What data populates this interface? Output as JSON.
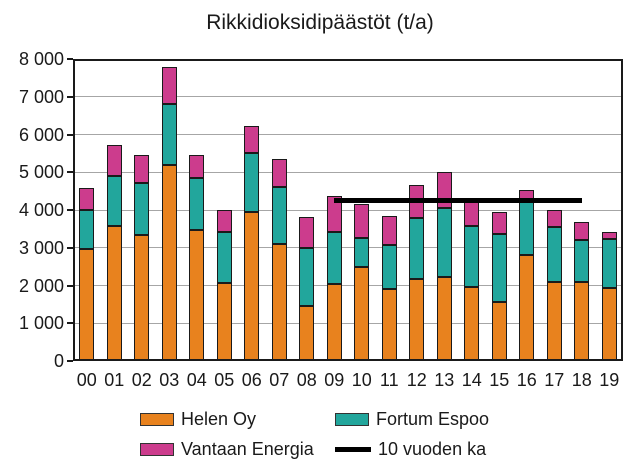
{
  "chart_data": {
    "type": "bar",
    "stacked": true,
    "title": "Rikkidioksidipäästöt (t/a)",
    "categories": [
      "00",
      "01",
      "02",
      "03",
      "04",
      "05",
      "06",
      "07",
      "08",
      "09",
      "10",
      "11",
      "12",
      "13",
      "14",
      "15",
      "16",
      "17",
      "18",
      "19"
    ],
    "series": [
      {
        "name": "Helen Oy",
        "color": "#e8821e",
        "values": [
          2970,
          3570,
          3350,
          5180,
          3470,
          2060,
          3950,
          3090,
          1450,
          2040,
          2500,
          1910,
          2180,
          2220,
          1950,
          1550,
          2800,
          2100,
          2090,
          1930
        ]
      },
      {
        "name": "Fortum Espoo",
        "color": "#22a69c",
        "values": [
          1030,
          1330,
          1370,
          1620,
          1390,
          1360,
          1550,
          1520,
          1540,
          1370,
          760,
          1160,
          1600,
          1830,
          1620,
          1810,
          1400,
          1450,
          1110,
          1300
        ]
      },
      {
        "name": "Vantaan Energia",
        "color": "#cc3c8d",
        "values": [
          580,
          830,
          730,
          1000,
          610,
          580,
          720,
          750,
          820,
          960,
          900,
          780,
          890,
          950,
          630,
          590,
          340,
          440,
          480,
          190
        ]
      }
    ],
    "avg_line": {
      "label": "10 vuoden ka",
      "value": 4240,
      "from_index": 9,
      "to_index": 18,
      "color": "#000000"
    },
    "ylim": [
      0,
      8000
    ],
    "y_ticks": [
      {
        "value": 0,
        "label": "0"
      },
      {
        "value": 1000,
        "label": "1 000"
      },
      {
        "value": 2000,
        "label": "2 000"
      },
      {
        "value": 3000,
        "label": "3 000"
      },
      {
        "value": 4000,
        "label": "4 000"
      },
      {
        "value": 5000,
        "label": "5 000"
      },
      {
        "value": 6000,
        "label": "6 000"
      },
      {
        "value": 7000,
        "label": "7 000"
      },
      {
        "value": 8000,
        "label": "8 000"
      }
    ],
    "xlabel": "",
    "ylabel": "",
    "grid": "horizontal",
    "legend_position": "bottom"
  },
  "legend": {
    "items": [
      {
        "label": "Helen Oy",
        "color": "#e8821e",
        "type": "box"
      },
      {
        "label": "Fortum Espoo",
        "color": "#22a69c",
        "type": "box"
      },
      {
        "label": "Vantaan Energia",
        "color": "#cc3c8d",
        "type": "box"
      },
      {
        "label": "10 vuoden ka",
        "color": "#000000",
        "type": "line"
      }
    ]
  }
}
